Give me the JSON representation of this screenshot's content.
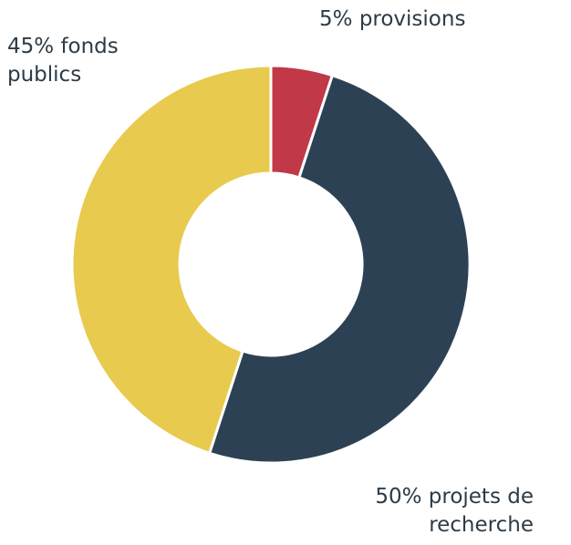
{
  "chart_data": {
    "type": "donut",
    "categories": [
      "provisions",
      "projets de recherche",
      "fonds publics"
    ],
    "values": [
      5,
      50,
      45
    ],
    "value_labels": [
      "5%",
      "50%",
      "45%"
    ],
    "colors": [
      "#c13848",
      "#2c4254",
      "#e8ca4f"
    ]
  }
}
